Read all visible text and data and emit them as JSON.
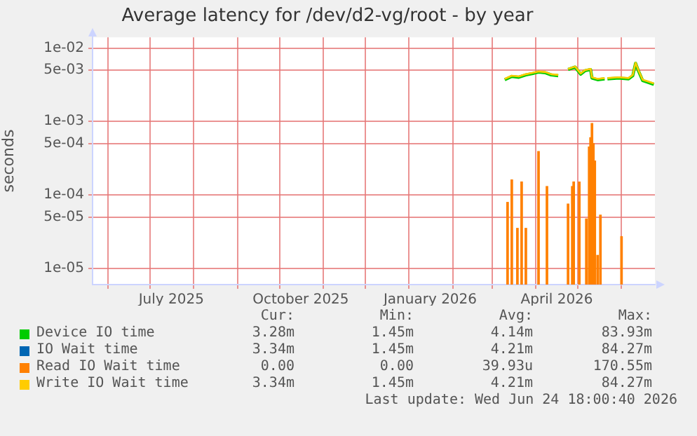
{
  "chart_data": {
    "type": "line",
    "title": "Average latency for /dev/d2-vg/root - by year",
    "ylabel": "seconds",
    "log": "y",
    "grid": true,
    "legend": "bottom",
    "xlim": [
      "2025-05-21",
      "2026-06-24T18:00"
    ],
    "ylim": [
      6e-06,
      0.014
    ],
    "xticks": [
      {
        "value": "2025-06-01",
        "label": null
      },
      {
        "value": "2025-07-01",
        "label": null
      },
      {
        "value": "2025-07-16",
        "label": "July 2025"
      },
      {
        "value": "2025-08-01",
        "label": null
      },
      {
        "value": "2025-09-01",
        "label": null
      },
      {
        "value": "2025-10-01",
        "label": null
      },
      {
        "value": "2025-10-16",
        "label": "October 2025"
      },
      {
        "value": "2025-11-01",
        "label": null
      },
      {
        "value": "2025-12-01",
        "label": null
      },
      {
        "value": "2026-01-01",
        "label": null
      },
      {
        "value": "2026-01-16",
        "label": "January 2026"
      },
      {
        "value": "2026-02-01",
        "label": null
      },
      {
        "value": "2026-03-01",
        "label": null
      },
      {
        "value": "2026-04-01",
        "label": null
      },
      {
        "value": "2026-04-16",
        "label": "April 2026"
      },
      {
        "value": "2026-05-01",
        "label": null
      },
      {
        "value": "2026-06-01",
        "label": null
      }
    ],
    "yticks": [
      {
        "value": 0.01,
        "label": "1e-02"
      },
      {
        "value": 0.005,
        "label": "5e-03"
      },
      {
        "value": 0.001,
        "label": "1e-03"
      },
      {
        "value": 0.0005,
        "label": "5e-04"
      },
      {
        "value": 0.0001,
        "label": "1e-04"
      },
      {
        "value": 5e-05,
        "label": "5e-05"
      },
      {
        "value": 1e-05,
        "label": "1e-05"
      }
    ],
    "series": [
      {
        "name": "Device IO time",
        "color": "#00cc00",
        "x": [
          "2026-03-10",
          "2026-03-15",
          "2026-03-20",
          "2026-03-25",
          "2026-03-30",
          "2026-04-03",
          "2026-04-08",
          "2026-04-12",
          "2026-04-17",
          "2026-04-20",
          "2026-04-24",
          "2026-04-29",
          "2026-05-03",
          "2026-05-06",
          "2026-05-10",
          "2026-05-11",
          "2026-05-15",
          "2026-05-20",
          "2026-05-21",
          "2026-05-22",
          "2026-05-30",
          "2026-06-06",
          "2026-06-09",
          "2026-06-11",
          "2026-06-13",
          "2026-06-16",
          "2026-06-20",
          "2026-06-24"
        ],
        "values": [
          0.0037,
          0.0041,
          0.004,
          0.0043,
          0.0045,
          0.0047,
          0.0046,
          0.0043,
          0.0042,
          null,
          0.0051,
          0.0055,
          0.0044,
          0.0049,
          0.0051,
          0.0039,
          0.0037,
          0.0038,
          null,
          0.0038,
          0.0039,
          0.0038,
          0.0042,
          0.0062,
          0.0049,
          0.0036,
          0.0034,
          0.0032
        ]
      },
      {
        "name": "IO Wait time",
        "color": "#0066b3"
      },
      {
        "name": "Read IO Wait time",
        "type": "bar",
        "color": "#ff8000",
        "x": [
          "2026-03-12",
          "2026-03-15",
          "2026-03-19",
          "2026-03-22",
          "2026-03-25",
          "2026-04-03",
          "2026-04-09",
          "2026-04-24",
          "2026-04-27",
          "2026-04-28",
          "2026-05-02",
          "2026-05-07",
          "2026-05-09",
          "2026-05-10",
          "2026-05-11",
          "2026-05-12",
          "2026-05-13",
          "2026-05-15",
          "2026-05-17",
          "2026-06-01"
        ],
        "values": [
          7.9e-05,
          0.00016,
          3.5e-05,
          0.00015,
          3.5e-05,
          0.00039,
          0.00013,
          7.5e-05,
          0.00013,
          0.00015,
          0.00015,
          4.7e-05,
          0.00045,
          0.0006,
          0.00094,
          0.0005,
          0.00029,
          1.5e-05,
          5.3e-05,
          2.7e-05
        ]
      },
      {
        "name": "Write IO Wait time",
        "color": "#ffcc00",
        "x": [
          "2026-03-10",
          "2026-03-15",
          "2026-03-20",
          "2026-03-25",
          "2026-03-30",
          "2026-04-03",
          "2026-04-08",
          "2026-04-12",
          "2026-04-17",
          "2026-04-20",
          "2026-04-24",
          "2026-04-29",
          "2026-05-03",
          "2026-05-06",
          "2026-05-10",
          "2026-05-11",
          "2026-05-15",
          "2026-05-20",
          "2026-05-21",
          "2026-05-22",
          "2026-05-30",
          "2026-06-06",
          "2026-06-09",
          "2026-06-11",
          "2026-06-13",
          "2026-06-16",
          "2026-06-20",
          "2026-06-24"
        ],
        "values": [
          0.0038,
          0.0042,
          0.0041,
          0.0044,
          0.0046,
          0.0048,
          0.0047,
          0.0044,
          0.0043,
          null,
          0.0052,
          0.0056,
          0.0045,
          0.005,
          0.0052,
          0.004,
          0.0038,
          0.0039,
          null,
          0.0039,
          0.004,
          0.0039,
          0.0043,
          0.0063,
          0.005,
          0.0037,
          0.0035,
          0.0033
        ]
      }
    ],
    "annotations": [
      "Cur:",
      "Min:",
      "Avg:",
      "Max:",
      "3.28m",
      "1.45m",
      "4.14m",
      "83.93m",
      "3.34m",
      "1.45m",
      "4.21m",
      "84.27m",
      "0.00",
      "0.00",
      "39.93u",
      "170.55m",
      "3.34m",
      "1.45m",
      "4.21m",
      "84.27m",
      "Last update: Wed Jun 24 18:00:40 2026"
    ]
  }
}
